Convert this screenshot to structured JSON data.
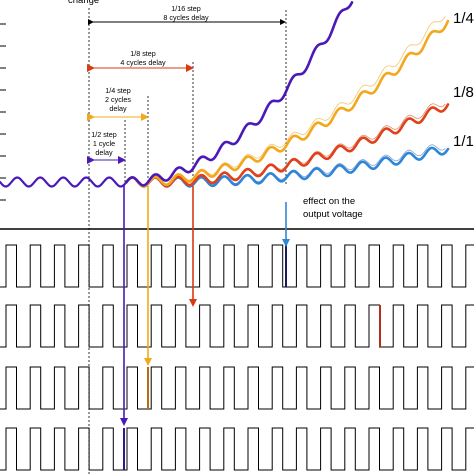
{
  "top_cut_label": "change",
  "step_annotations": [
    {
      "step": "1/16 step",
      "delay": "8 cycles delay",
      "color": "#000000"
    },
    {
      "step": "1/8 step",
      "delay": "4 cycles delay",
      "color": "#d93a12"
    },
    {
      "step": "1/4 step",
      "delay": "2 cycles",
      "delay2": "delay",
      "color": "#f2a81c"
    },
    {
      "step": "1/2 step",
      "delay": "1 cycle",
      "delay2": "delay",
      "color": "#4a19b8"
    }
  ],
  "effect_label": {
    "line1": "effect on the",
    "line2": "output voltage"
  },
  "right_labels": [
    "1/4",
    "1/8",
    "1/1"
  ],
  "series_colors": {
    "half_step": "#4a19b8",
    "quarter_step": "#f2a81c",
    "eighth_step": "#e0401a",
    "sixteenth_step": "#2e86d9",
    "effect_arrow": "#2e86d9"
  },
  "pulse_rows": [
    {
      "name": "row-1",
      "highlight_color": "#1a1a5a"
    },
    {
      "name": "row-2",
      "highlight_color": "#b0301a"
    },
    {
      "name": "row-3",
      "highlight_color": "#b07010"
    },
    {
      "name": "row-4",
      "highlight_color": "#2a1a8a"
    }
  ]
}
